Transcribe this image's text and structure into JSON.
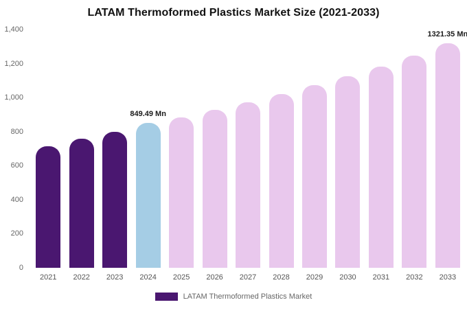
{
  "title": "LATAM Thermoformed Plastics Market Size (2021-2033)",
  "colors": {
    "historical": "#4a1770",
    "current": "#a5cde5",
    "forecast": "#e9c8ed"
  },
  "y_axis": {
    "min": 0,
    "max": 1400,
    "tick_step": 200,
    "tick_labels": [
      "0",
      "200",
      "400",
      "600",
      "800",
      "1,000",
      "1,200",
      "1,400"
    ]
  },
  "legend": {
    "label": "LATAM Thermoformed Plastics Market",
    "swatch_color": "#4a1770"
  },
  "chart_data": {
    "type": "bar",
    "title": "LATAM Thermoformed Plastics Market Size (2021-2033)",
    "categories": [
      "2021",
      "2022",
      "2023",
      "2024",
      "2025",
      "2026",
      "2027",
      "2028",
      "2029",
      "2030",
      "2031",
      "2032",
      "2033"
    ],
    "values": [
      715,
      757,
      800,
      849.49,
      884,
      928,
      972,
      1022,
      1073,
      1127,
      1183,
      1245,
      1321.35
    ],
    "unit": "Mn",
    "xlabel": "",
    "ylabel": "",
    "ylim": [
      0,
      1400
    ],
    "grid": false,
    "legend_position": "bottom",
    "bar_categories": [
      "historical",
      "historical",
      "historical",
      "current",
      "forecast",
      "forecast",
      "forecast",
      "forecast",
      "forecast",
      "forecast",
      "forecast",
      "forecast",
      "forecast"
    ],
    "annotations": [
      {
        "index": 3,
        "text": "849.49 Mn"
      },
      {
        "index": 12,
        "text": "1321.35 Mn"
      }
    ]
  }
}
